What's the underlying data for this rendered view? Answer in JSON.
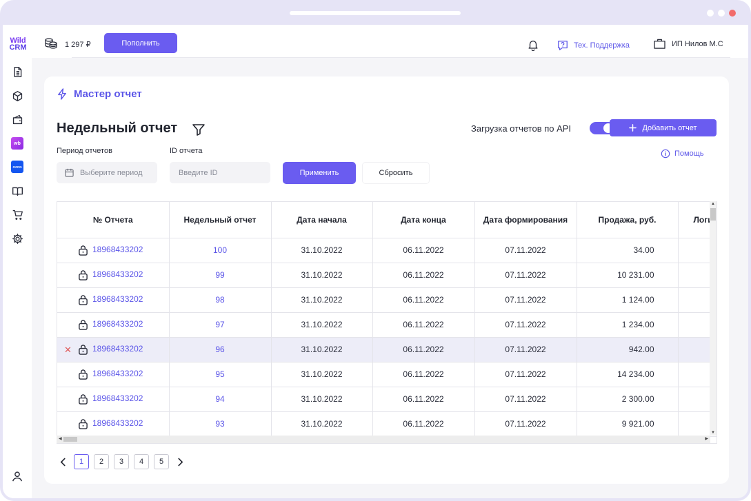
{
  "logo": {
    "line1": "Wild",
    "line2": "CRM"
  },
  "header": {
    "balance": "1 297 ₽",
    "topup_label": "Пополнить",
    "support_label": "Тех. Поддержка",
    "account_label": "ИП Нилов М.С"
  },
  "sidebar": {
    "wb_label": "wb",
    "ozon_label": "OZON"
  },
  "main": {
    "section_title": "Мастер отчет",
    "page_title": "Недельный отчет",
    "api_label": "Загрузка отчетов по API",
    "add_report_label": "Добавить отчет",
    "help_label": "Помощь"
  },
  "filters": {
    "period_label": "Период отчетов",
    "period_placeholder": "Выберите период",
    "id_label": "ID отчета",
    "id_placeholder": "Введите ID",
    "apply_label": "Применить",
    "reset_label": "Сбросить"
  },
  "table": {
    "columns": [
      "№ Отчета",
      "Недельный отчет",
      "Дата начала",
      "Дата конца",
      "Дата формирования",
      "Продажа, руб.",
      "Логистика, руб."
    ],
    "rows": [
      {
        "id": "18968433202",
        "week": "100",
        "start": "31.10.2022",
        "end": "06.11.2022",
        "formed": "07.11.2022",
        "sale": "34.00"
      },
      {
        "id": "18968433202",
        "week": "99",
        "start": "31.10.2022",
        "end": "06.11.2022",
        "formed": "07.11.2022",
        "sale": "10 231.00"
      },
      {
        "id": "18968433202",
        "week": "98",
        "start": "31.10.2022",
        "end": "06.11.2022",
        "formed": "07.11.2022",
        "sale": "1 124.00"
      },
      {
        "id": "18968433202",
        "week": "97",
        "start": "31.10.2022",
        "end": "06.11.2022",
        "formed": "07.11.2022",
        "sale": "1 234.00"
      },
      {
        "id": "18968433202",
        "week": "96",
        "start": "31.10.2022",
        "end": "06.11.2022",
        "formed": "07.11.2022",
        "sale": "942.00"
      },
      {
        "id": "18968433202",
        "week": "95",
        "start": "31.10.2022",
        "end": "06.11.2022",
        "formed": "07.11.2022",
        "sale": "14 234.00"
      },
      {
        "id": "18968433202",
        "week": "94",
        "start": "31.10.2022",
        "end": "06.11.2022",
        "formed": "07.11.2022",
        "sale": "2 300.00"
      },
      {
        "id": "18968433202",
        "week": "93",
        "start": "31.10.2022",
        "end": "06.11.2022",
        "formed": "07.11.2022",
        "sale": "9 921.00"
      }
    ],
    "selected_row": 4
  },
  "pagination": {
    "pages": [
      "1",
      "2",
      "3",
      "4",
      "5"
    ],
    "current": "1"
  },
  "colors": {
    "accent": "#6a5cf0",
    "link": "#5b55e8",
    "delete": "#e05a5a",
    "selected_row": "#ededf8"
  }
}
